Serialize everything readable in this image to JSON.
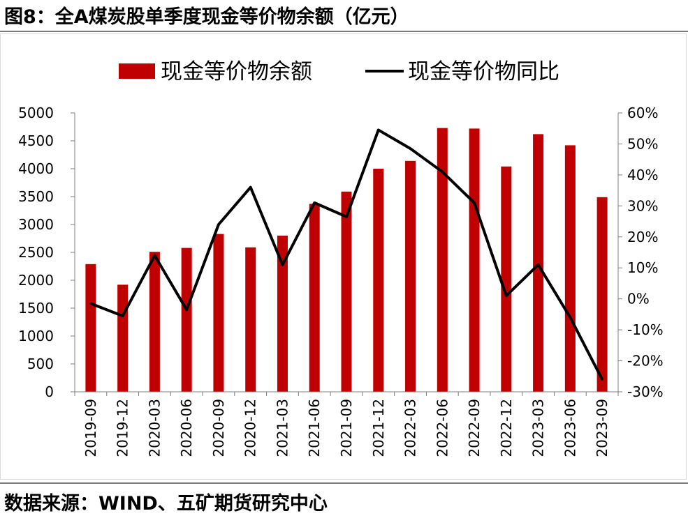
{
  "header": {
    "title": "图8：全A煤炭股单季度现金等价物余额（亿元）"
  },
  "footer": {
    "source": "数据来源：WIND、五矿期货研究中心"
  },
  "colors": {
    "bar": "#c00000",
    "line": "#000000"
  },
  "chart_data": {
    "type": "bar",
    "title": "",
    "categories": [
      "2019-09",
      "2019-12",
      "2020-03",
      "2020-06",
      "2020-09",
      "2020-12",
      "2021-03",
      "2021-06",
      "2021-09",
      "2021-12",
      "2022-03",
      "2022-06",
      "2022-09",
      "2022-12",
      "2023-03",
      "2023-06",
      "2023-09"
    ],
    "series": [
      {
        "name": "现金等价物余额",
        "type": "bar",
        "axis": "left",
        "values": [
          2290,
          1920,
          2510,
          2580,
          2830,
          2590,
          2800,
          3370,
          3590,
          4000,
          4140,
          4730,
          4720,
          4040,
          4620,
          4420,
          3490
        ]
      },
      {
        "name": "现金等价物同比",
        "type": "line",
        "axis": "right",
        "values": [
          -1.5,
          -5.5,
          14,
          -3.5,
          24,
          36,
          11,
          31,
          26.5,
          54.5,
          48.5,
          41,
          31,
          1,
          11,
          -6,
          -26
        ]
      }
    ],
    "yticks_left": [
      "0",
      "500",
      "1000",
      "1500",
      "2000",
      "2500",
      "3000",
      "3500",
      "4000",
      "4500",
      "5000"
    ],
    "ylim_left": [
      0,
      5000
    ],
    "yticks_right": [
      "-30%",
      "-20%",
      "-10%",
      "0%",
      "10%",
      "20%",
      "30%",
      "40%",
      "50%",
      "60%"
    ],
    "ylim_right": [
      -30,
      60
    ],
    "legend_position": "top",
    "grid": false
  }
}
